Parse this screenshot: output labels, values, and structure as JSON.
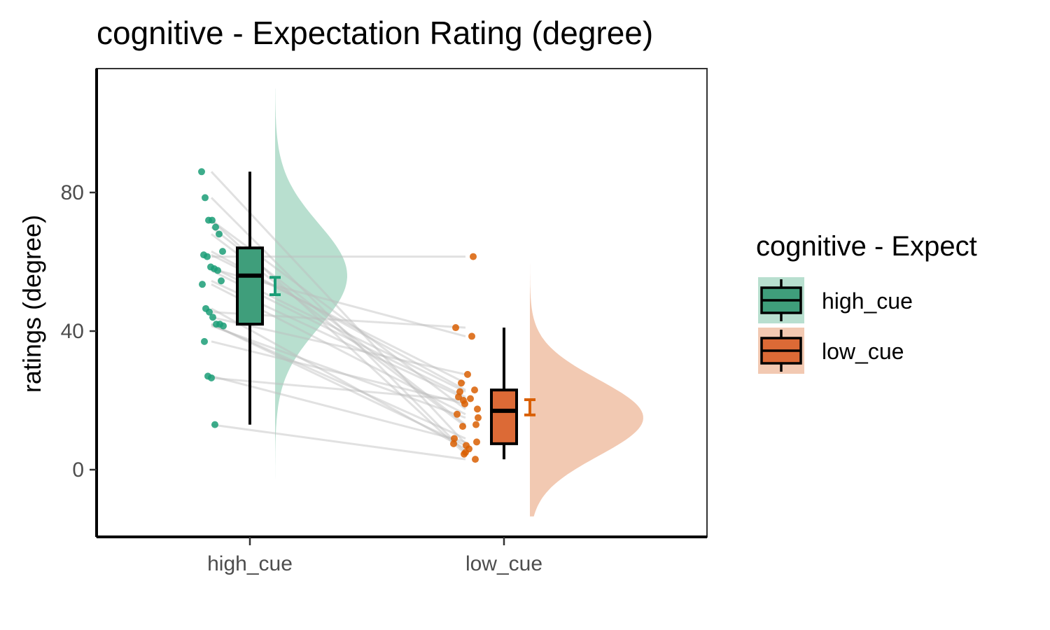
{
  "chart_data": {
    "type": "raincloud",
    "title": "cognitive  - Expectation Rating (degree)",
    "xlabel": "",
    "ylabel": "ratings (degree)",
    "ylim": [
      -19,
      116
    ],
    "yticks": [
      0,
      40,
      80
    ],
    "categories": [
      "high_cue",
      "low_cue"
    ],
    "grid": false,
    "legend": {
      "title": "cognitive  - Expect",
      "placement": "right",
      "entries": [
        "high_cue",
        "low_cue"
      ]
    },
    "colors": {
      "high_cue": "#1b9e77",
      "low_cue": "#d95f02",
      "box_high": "#3f9e7b",
      "box_low": "#dc6a36",
      "cloud_high": "#b8dfcf",
      "cloud_low": "#f2c9b2",
      "line": "#bdbdbd"
    },
    "boxplot": [
      {
        "group": "high_cue",
        "min": 13,
        "q1": 42,
        "median": 56,
        "q3": 64,
        "max": 86
      },
      {
        "group": "low_cue",
        "min": 3,
        "q1": 7.5,
        "median": 17,
        "q3": 23,
        "max": 41
      }
    ],
    "mean_se": [
      {
        "group": "high_cue",
        "mean": 53,
        "lower": 50.5,
        "upper": 55.5
      },
      {
        "group": "low_cue",
        "mean": 18,
        "lower": 15.8,
        "upper": 20.2
      }
    ],
    "density": [
      {
        "group": "high_cue",
        "range": [
          -11,
          110
        ],
        "peak": 56,
        "sd": 15
      },
      {
        "group": "low_cue",
        "range": [
          -13.5,
          78
        ],
        "peak": 15,
        "sd": 11
      }
    ],
    "subjects": [
      {
        "high_cue": 86,
        "low_cue": 7.5
      },
      {
        "high_cue": 78.5,
        "low_cue": 5
      },
      {
        "high_cue": 72,
        "low_cue": 17.5
      },
      {
        "high_cue": 72,
        "low_cue": 4.5
      },
      {
        "high_cue": 70,
        "low_cue": 13
      },
      {
        "high_cue": 68,
        "low_cue": 12.5
      },
      {
        "high_cue": 63,
        "low_cue": 23
      },
      {
        "high_cue": 62,
        "low_cue": 25
      },
      {
        "high_cue": 61.5,
        "low_cue": 61.5
      },
      {
        "high_cue": 58.5,
        "low_cue": 22.5
      },
      {
        "high_cue": 58,
        "low_cue": 38.5
      },
      {
        "high_cue": 57.5,
        "low_cue": 21
      },
      {
        "high_cue": 54.5,
        "low_cue": 20.5
      },
      {
        "high_cue": 53.5,
        "low_cue": 16
      },
      {
        "high_cue": 46.5,
        "low_cue": 6
      },
      {
        "high_cue": 45.5,
        "low_cue": 41
      },
      {
        "high_cue": 44,
        "low_cue": 27.5
      },
      {
        "high_cue": 42,
        "low_cue": 9
      },
      {
        "high_cue": 42,
        "low_cue": 7
      },
      {
        "high_cue": 41.5,
        "low_cue": 15
      },
      {
        "high_cue": 37,
        "low_cue": 19
      },
      {
        "high_cue": 27,
        "low_cue": 8
      },
      {
        "high_cue": 26.5,
        "low_cue": 20
      },
      {
        "high_cue": 13,
        "low_cue": 3
      }
    ]
  }
}
